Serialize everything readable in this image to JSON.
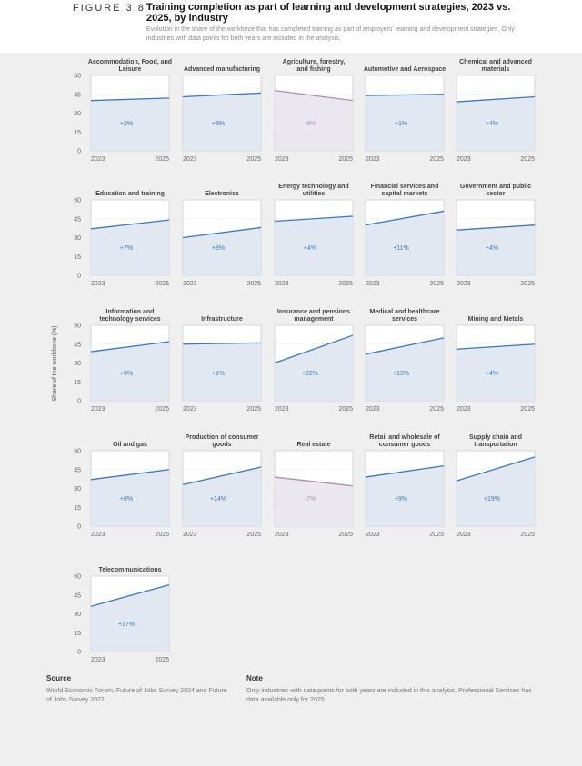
{
  "figure": {
    "label": "FIGURE 3.8",
    "title": "Training completion as part of learning and development strategies, 2023 vs. 2025, by industry",
    "subtitle": "Evolution in the share of the workforce that has completed training as part of employers’ learning and development strategies. Only industries with data points for both years are included in the analysis."
  },
  "colors": {
    "increase_line": "#3a78b7",
    "decrease_line": "#a98fb0",
    "increase_fill": "#dfe5f1",
    "decrease_fill": "#e8e4ec",
    "increase_label": "#3a78b7",
    "decrease_label": "#b08fb3",
    "panel_border": "#c4c8cf",
    "grid": "#cfd6e4"
  },
  "chart_data": {
    "type": "line",
    "ylabel": "Share of the workforce (%)",
    "ylim": [
      0,
      60
    ],
    "yticks": [
      "60",
      "45",
      "30",
      "15",
      "0"
    ],
    "x": [
      "2023",
      "2025"
    ],
    "panels": [
      {
        "title": "Accommodation, Food, and Leisure",
        "values": [
          40,
          42
        ],
        "change": "+2%"
      },
      {
        "title": "Advanced manufacturing",
        "values": [
          43,
          46
        ],
        "change": "+3%"
      },
      {
        "title": "Agriculture, forestry, and fishing",
        "values": [
          48,
          40
        ],
        "change": "-8%"
      },
      {
        "title": "Automotive and Aerospace",
        "values": [
          44,
          45
        ],
        "change": "+1%"
      },
      {
        "title": "Chemical and advanced materials",
        "values": [
          39,
          43
        ],
        "change": "+4%"
      },
      {
        "title": "Education and training",
        "values": [
          37,
          44
        ],
        "change": "+7%"
      },
      {
        "title": "Electronics",
        "values": [
          30,
          38
        ],
        "change": "+8%"
      },
      {
        "title": "Energy technology and utilities",
        "values": [
          43,
          47
        ],
        "change": "+4%"
      },
      {
        "title": "Financial services and capital markets",
        "values": [
          40,
          51
        ],
        "change": "+11%"
      },
      {
        "title": "Government and public sector",
        "values": [
          36,
          40
        ],
        "change": "+4%"
      },
      {
        "title": "Information and technology services",
        "values": [
          39,
          47
        ],
        "change": "+8%"
      },
      {
        "title": "Infrastructure",
        "values": [
          45,
          46
        ],
        "change": "+1%"
      },
      {
        "title": "Insurance and pensions management",
        "values": [
          30,
          52
        ],
        "change": "+22%"
      },
      {
        "title": "Medical and healthcare services",
        "values": [
          37,
          50
        ],
        "change": "+13%"
      },
      {
        "title": "Mining and Metals",
        "values": [
          41,
          45
        ],
        "change": "+4%"
      },
      {
        "title": "Oil and gas",
        "values": [
          37,
          45
        ],
        "change": "+8%"
      },
      {
        "title": "Production of consumer goods",
        "values": [
          33,
          47
        ],
        "change": "+14%"
      },
      {
        "title": "Real estate",
        "values": [
          39,
          32
        ],
        "change": "-7%"
      },
      {
        "title": "Retail and wholesale of consumer goods",
        "values": [
          39,
          48
        ],
        "change": "+9%"
      },
      {
        "title": "Supply chain and transportation",
        "values": [
          36,
          55
        ],
        "change": "+19%"
      },
      {
        "title": "Telecommunications",
        "values": [
          36,
          53
        ],
        "change": "+17%"
      }
    ]
  },
  "footer": {
    "source_heading": "Source",
    "source_text": "World Economic Forum, Future of Jobs Survey 2024 and Future of Jobs Survey 2022.",
    "note_heading": "Note",
    "note_text": "Only industries with data points for both years are included in this analysis. Professional Services has data available only for 2025."
  }
}
